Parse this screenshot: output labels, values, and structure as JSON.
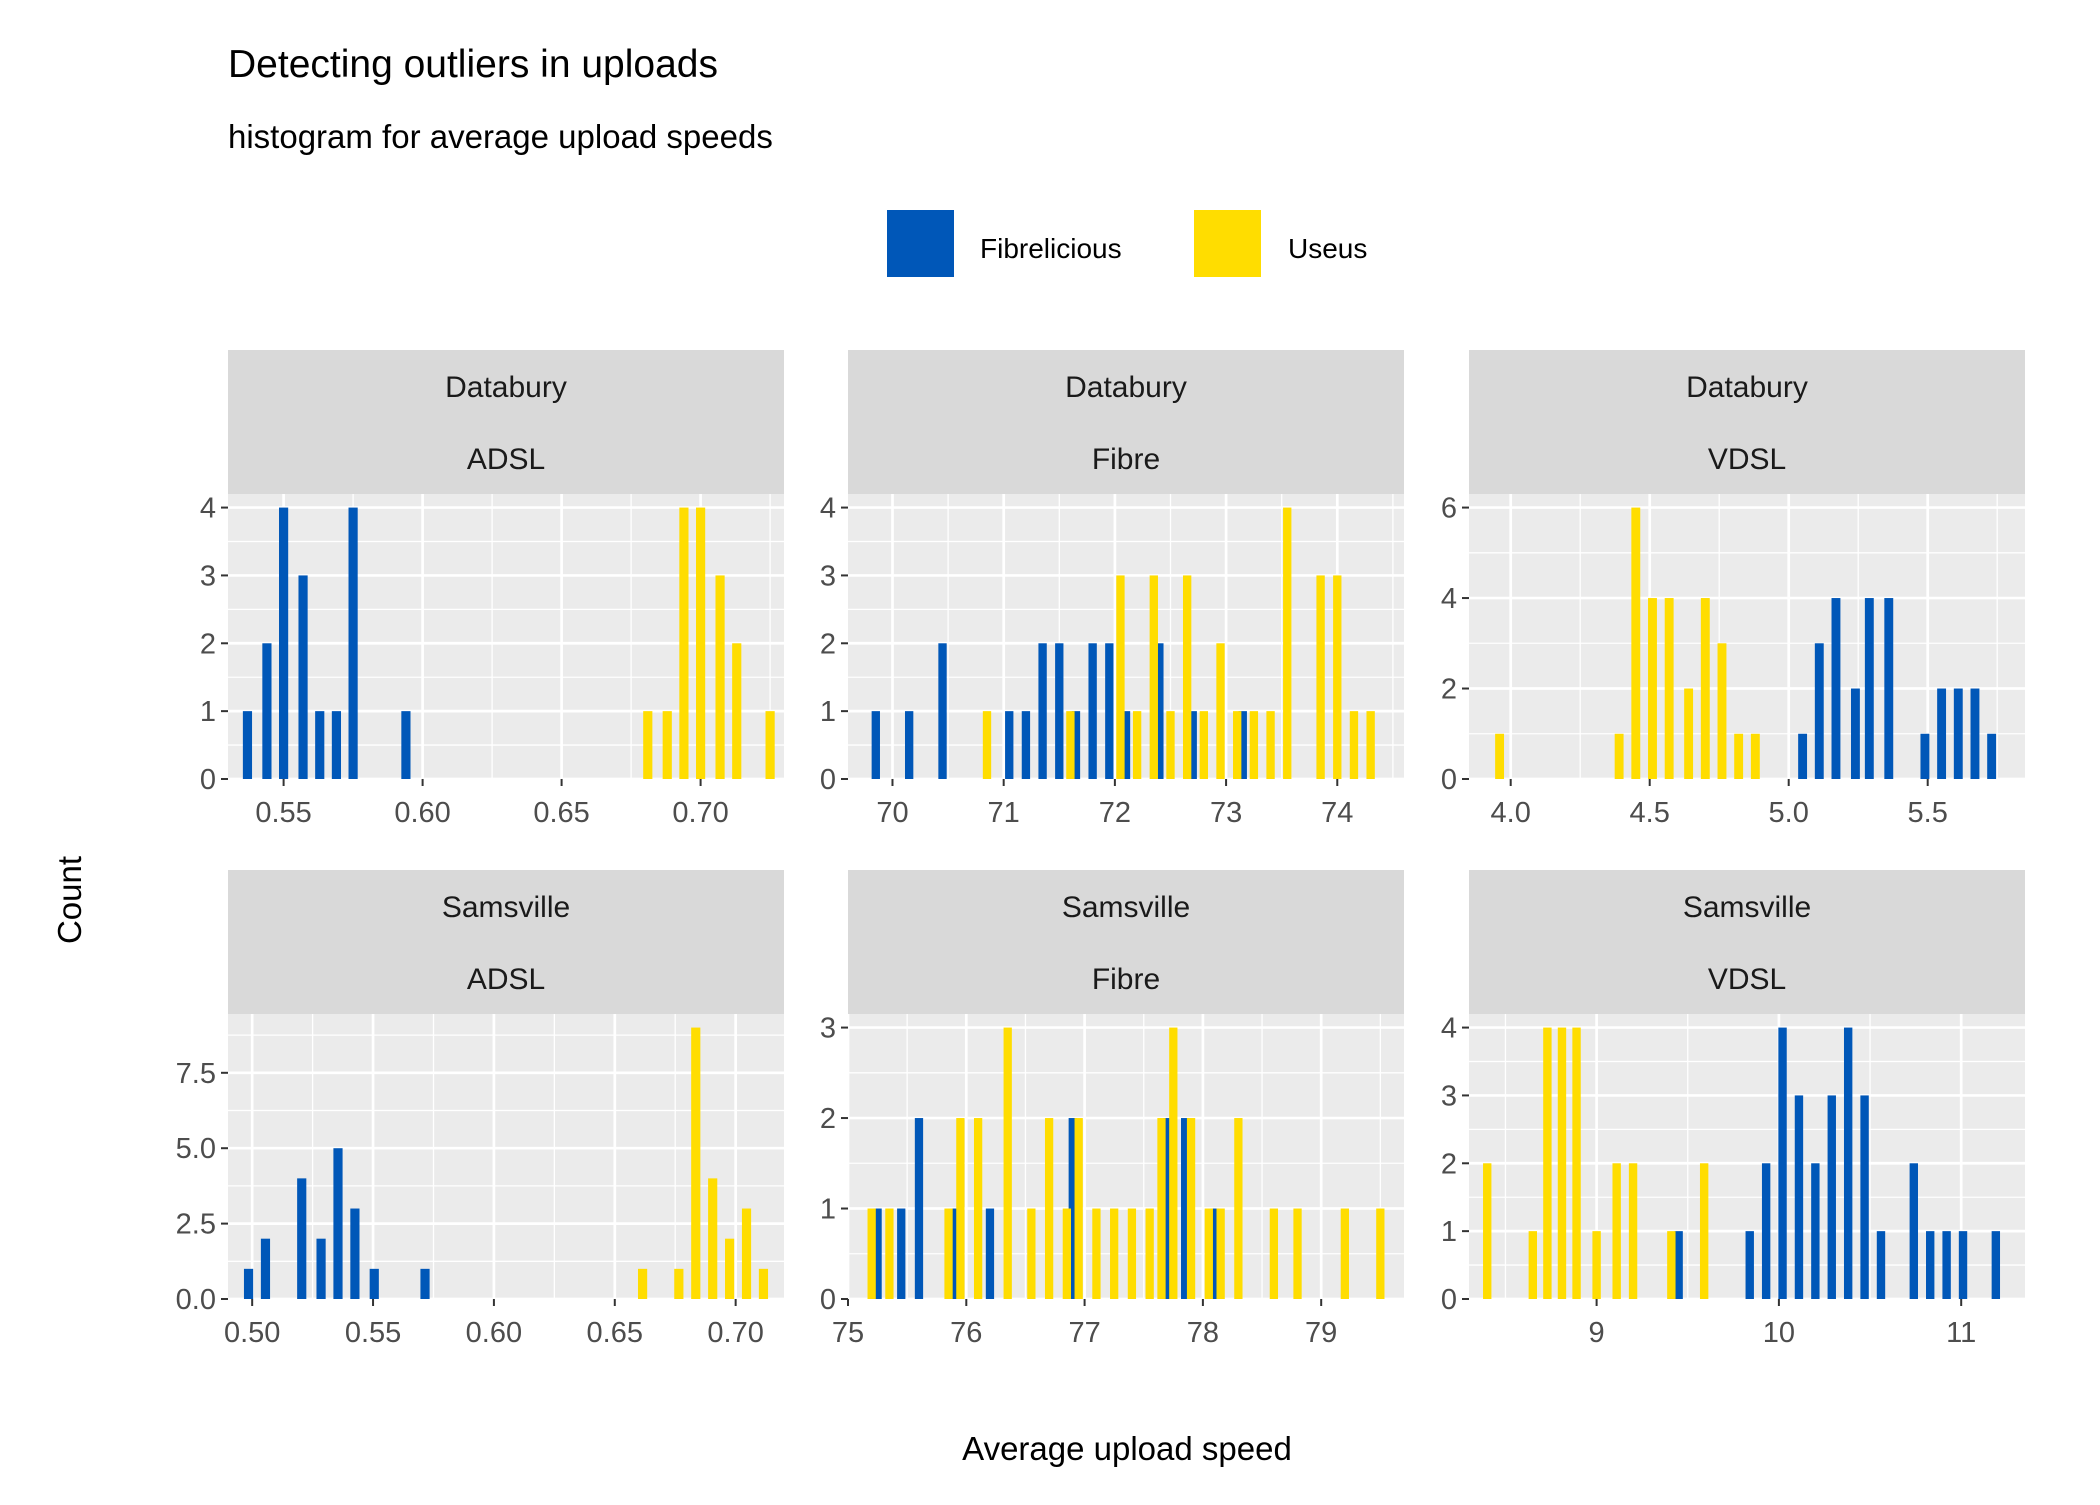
{
  "chart_data": {
    "type": "bar",
    "subtype": "histogram",
    "title": "Detecting outliers in uploads",
    "subtitle": "histogram for average upload speeds",
    "xlabel": "Average upload speed",
    "ylabel": "Count",
    "grid": true,
    "legend": {
      "placement": "top",
      "entries": [
        {
          "name": "Fibrelicious",
          "color": "#0057B8"
        },
        {
          "name": "Useus",
          "color": "#FFDD00"
        }
      ]
    },
    "colors": {
      "Fibrelicious": "#0057B8",
      "Useus": "#FFDD00",
      "panel_background": "#EBEBEB",
      "strip_background": "#D9D9D9",
      "gridline": "#FFFFFF"
    },
    "panels": [
      {
        "strip": [
          "Databury",
          "ADSL"
        ],
        "xlim": [
          0.53,
          0.73
        ],
        "ylim": [
          0,
          4.2
        ],
        "xticks": [
          0.55,
          0.6,
          0.65,
          0.7
        ],
        "xtick_labels": [
          "0.55",
          "0.60",
          "0.65",
          "0.70"
        ],
        "yticks": [
          0,
          1,
          2,
          3,
          4
        ],
        "ytick_labels": [
          "0",
          "1",
          "2",
          "3",
          "4"
        ],
        "bar_width": 0.0033,
        "series": [
          {
            "name": "Fibrelicious",
            "x": [
              0.537,
              0.544,
              0.55,
              0.557,
              0.563,
              0.569,
              0.575,
              0.594
            ],
            "values": [
              1,
              2,
              4,
              3,
              1,
              1,
              4,
              1
            ]
          },
          {
            "name": "Useus",
            "x": [
              0.681,
              0.688,
              0.694,
              0.7,
              0.707,
              0.713,
              0.725
            ],
            "values": [
              1,
              1,
              4,
              4,
              3,
              2,
              1
            ]
          }
        ]
      },
      {
        "strip": [
          "Databury",
          "Fibre"
        ],
        "xlim": [
          69.6,
          74.6
        ],
        "ylim": [
          0,
          4.2
        ],
        "xticks": [
          70,
          71,
          72,
          73,
          74
        ],
        "xtick_labels": [
          "70",
          "71",
          "72",
          "73",
          "74"
        ],
        "yticks": [
          0,
          1,
          2,
          3,
          4
        ],
        "ytick_labels": [
          "0",
          "1",
          "2",
          "3",
          "4"
        ],
        "bar_width": 0.075,
        "series": [
          {
            "name": "Fibrelicious",
            "x": [
              69.85,
              70.15,
              70.45,
              71.05,
              71.2,
              71.35,
              71.5,
              71.65,
              71.8,
              71.95,
              72.1,
              72.4,
              72.7,
              73.15
            ],
            "values": [
              1,
              1,
              2,
              1,
              1,
              2,
              2,
              1,
              2,
              2,
              1,
              2,
              1,
              1
            ]
          },
          {
            "name": "Useus",
            "x": [
              70.85,
              71.6,
              72.05,
              72.2,
              72.35,
              72.5,
              72.65,
              72.8,
              72.95,
              73.1,
              73.25,
              73.4,
              73.55,
              73.85,
              74.0,
              74.15,
              74.3
            ],
            "values": [
              1,
              1,
              3,
              1,
              3,
              1,
              3,
              1,
              2,
              1,
              1,
              1,
              4,
              3,
              3,
              1,
              1
            ]
          }
        ]
      },
      {
        "strip": [
          "Databury",
          "VDSL"
        ],
        "xlim": [
          3.85,
          5.85
        ],
        "ylim": [
          0,
          6.3
        ],
        "xticks": [
          4.0,
          4.5,
          5.0,
          5.5
        ],
        "xtick_labels": [
          "4.0",
          "4.5",
          "5.0",
          "5.5"
        ],
        "yticks": [
          0,
          2,
          4,
          6
        ],
        "ytick_labels": [
          "0",
          "2",
          "4",
          "6"
        ],
        "bar_width": 0.032,
        "series": [
          {
            "name": "Fibrelicious",
            "x": [
              5.05,
              5.11,
              5.17,
              5.24,
              5.29,
              5.36,
              5.49,
              5.55,
              5.61,
              5.67,
              5.73
            ],
            "values": [
              1,
              3,
              4,
              2,
              4,
              4,
              1,
              2,
              2,
              2,
              1
            ]
          },
          {
            "name": "Useus",
            "x": [
              3.96,
              4.39,
              4.45,
              4.51,
              4.57,
              4.64,
              4.7,
              4.76,
              4.82,
              4.88
            ],
            "values": [
              1,
              1,
              6,
              4,
              4,
              2,
              4,
              3,
              1,
              1
            ]
          }
        ]
      },
      {
        "strip": [
          "Samsville",
          "ADSL"
        ],
        "xlim": [
          0.49,
          0.72
        ],
        "ylim": [
          0,
          9.45
        ],
        "xticks": [
          0.5,
          0.55,
          0.6,
          0.65,
          0.7
        ],
        "xtick_labels": [
          "0.50",
          "0.55",
          "0.60",
          "0.65",
          "0.70"
        ],
        "yticks": [
          0,
          2.5,
          5,
          7.5
        ],
        "ytick_labels": [
          "0.0",
          "2.5",
          "5.0",
          "7.5"
        ],
        "bar_width": 0.0038,
        "series": [
          {
            "name": "Fibrelicious",
            "x": [
              0.4985,
              0.5055,
              0.5205,
              0.5285,
              0.5355,
              0.5425,
              0.5505,
              0.5715
            ],
            "values": [
              1,
              2,
              4,
              2,
              5,
              3,
              1,
              1
            ]
          },
          {
            "name": "Useus",
            "x": [
              0.6615,
              0.6765,
              0.6835,
              0.6905,
              0.6975,
              0.7045,
              0.7115
            ],
            "values": [
              1,
              1,
              9,
              4,
              2,
              3,
              1
            ]
          }
        ]
      },
      {
        "strip": [
          "Samsville",
          "Fibre"
        ],
        "xlim": [
          75.0,
          79.7
        ],
        "ylim": [
          0,
          3.15
        ],
        "xticks": [
          75,
          76,
          77,
          78,
          79
        ],
        "xtick_labels": [
          "75",
          "76",
          "77",
          "78",
          "79"
        ],
        "yticks": [
          0,
          1,
          2,
          3
        ],
        "ytick_labels": [
          "0",
          "1",
          "2",
          "3"
        ],
        "bar_width": 0.07,
        "series": [
          {
            "name": "Fibrelicious",
            "x": [
              75.25,
              75.45,
              75.6,
              75.9,
              76.2,
              76.9,
              77.7,
              77.85,
              78.1
            ],
            "values": [
              1,
              1,
              2,
              1,
              1,
              2,
              2,
              2,
              1
            ]
          },
          {
            "name": "Useus",
            "x": [
              75.2,
              75.35,
              75.85,
              75.95,
              76.1,
              76.35,
              76.55,
              76.7,
              76.85,
              76.95,
              77.1,
              77.25,
              77.4,
              77.55,
              77.65,
              77.75,
              77.9,
              78.05,
              78.15,
              78.3,
              78.6,
              78.8,
              79.2,
              79.5
            ],
            "values": [
              1,
              1,
              1,
              2,
              2,
              3,
              1,
              2,
              1,
              2,
              1,
              1,
              1,
              1,
              2,
              3,
              2,
              1,
              1,
              2,
              1,
              1,
              1,
              1
            ]
          }
        ]
      },
      {
        "strip": [
          "Samsville",
          "VDSL"
        ],
        "xlim": [
          8.3,
          11.35
        ],
        "ylim": [
          0,
          4.2
        ],
        "xticks": [
          9,
          10,
          11
        ],
        "xtick_labels": [
          "9",
          "10",
          "11"
        ],
        "yticks": [
          0,
          1,
          2,
          3,
          4
        ],
        "ytick_labels": [
          "0",
          "1",
          "2",
          "3",
          "4"
        ],
        "bar_width": 0.046,
        "series": [
          {
            "name": "Fibrelicious",
            "x": [
              9.45,
              9.84,
              9.93,
              10.02,
              10.11,
              10.2,
              10.29,
              10.38,
              10.47,
              10.56,
              10.74,
              10.83,
              10.92,
              11.01,
              11.19
            ],
            "values": [
              1,
              1,
              2,
              4,
              3,
              2,
              3,
              4,
              3,
              1,
              2,
              1,
              1,
              1,
              1
            ]
          },
          {
            "name": "Useus",
            "x": [
              8.4,
              8.65,
              8.73,
              8.81,
              8.89,
              9.0,
              9.11,
              9.2,
              9.41,
              9.59
            ],
            "values": [
              2,
              1,
              4,
              4,
              4,
              1,
              2,
              2,
              1,
              2
            ]
          }
        ]
      }
    ]
  }
}
